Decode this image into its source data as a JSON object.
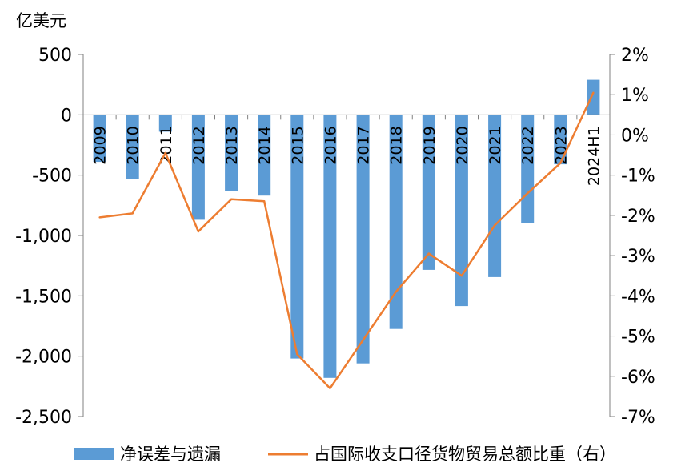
{
  "chart_data": {
    "type": "bar+line",
    "unit_label": "亿美元",
    "categories": [
      "2009",
      "2010",
      "2011",
      "2012",
      "2013",
      "2014",
      "2015",
      "2016",
      "2017",
      "2018",
      "2019",
      "2020",
      "2021",
      "2022",
      "2023",
      "2024H1"
    ],
    "series": [
      {
        "name": "净误差与遗漏",
        "type": "bar",
        "axis": "left",
        "color": "#5b9bd5",
        "values": [
          -390,
          -530,
          -140,
          -870,
          -630,
          -670,
          -2020,
          -2180,
          -2060,
          -1775,
          -1285,
          -1585,
          -1345,
          -895,
          -410,
          290
        ]
      },
      {
        "name": "占国际收支口径货物贸易总额比重（右）",
        "type": "line",
        "axis": "right",
        "color": "#ed7d31",
        "values": [
          -2.05,
          -1.95,
          -0.45,
          -2.4,
          -1.6,
          -1.65,
          -5.45,
          -6.3,
          -5.1,
          -3.9,
          -2.95,
          -3.5,
          -2.25,
          -1.45,
          -0.7,
          1.05
        ]
      }
    ],
    "y_left": {
      "min": -2500,
      "max": 500,
      "ticks": [
        500,
        0,
        -500,
        -1000,
        -1500,
        -2000,
        -2500
      ],
      "tick_labels": [
        "500",
        "0",
        "-500",
        "-1,000",
        "-1,500",
        "-2,000",
        "-2,500"
      ]
    },
    "y_right": {
      "min": -7,
      "max": 2,
      "ticks": [
        2,
        1,
        0,
        -1,
        -2,
        -3,
        -4,
        -5,
        -6,
        -7
      ],
      "tick_labels": [
        "2%",
        "1%",
        "0%",
        "-1%",
        "-2%",
        "-3%",
        "-4%",
        "-5%",
        "-6%",
        "-7%"
      ]
    },
    "grid": false,
    "legend_placement": "bottom"
  }
}
